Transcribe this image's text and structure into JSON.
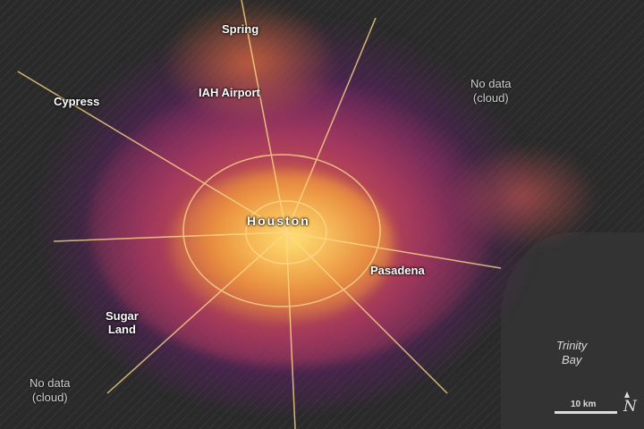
{
  "map": {
    "labels": {
      "spring": "Spring",
      "cypress": "Cypress",
      "iah": "IAH Airport",
      "houston": "Houston",
      "pasadena": "Pasadena",
      "sugar_land": "Sugar\nLand",
      "trinity_bay": "Trinity\nBay",
      "no_data_ne": "No data\n(cloud)",
      "no_data_sw": "No data\n(cloud)"
    },
    "scale_bar": "10 km",
    "north_symbol": "N",
    "colors": {
      "background": "#2a2a2a",
      "low": "#6a1b8a",
      "mid": "#e8641e",
      "high": "#ffe070"
    }
  }
}
